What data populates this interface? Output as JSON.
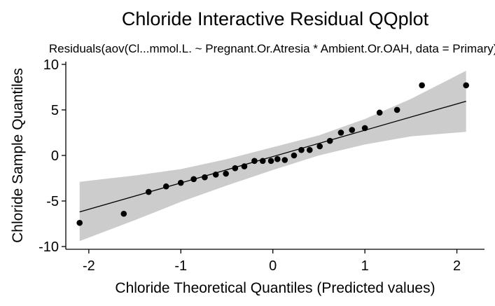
{
  "chart_data": {
    "type": "scatter",
    "title": "Chloride Interactive Residual QQplot",
    "subtitle": "Residuals(aov(Cl...mmol.L. ~ Pregnant.Or.Atresia * Ambient.Or.OAH, data = Primary))",
    "xlabel": "Chloride Theoretical Quantiles (Predicted values)",
    "ylabel": "Chloride Sample Quantiles",
    "xlim": [
      -2.25,
      2.3
    ],
    "ylim": [
      -10.3,
      10.3
    ],
    "x_ticks": [
      -2,
      -1,
      0,
      1,
      2
    ],
    "x_tick_labels": [
      "-2",
      "-1",
      "0",
      "1",
      "2"
    ],
    "y_ticks": [
      -10,
      -5,
      0,
      5,
      10
    ],
    "y_tick_labels": [
      "-10",
      "-5",
      "0",
      "5",
      "10"
    ],
    "grid": false,
    "colors": {
      "points": "#000000",
      "line": "#000000",
      "band": "#cccccc"
    },
    "reference_line": {
      "x": [
        -2.1,
        2.1
      ],
      "y": [
        -6.2,
        5.95
      ]
    },
    "confidence_band": {
      "x": [
        -2.1,
        -1.5,
        -1.0,
        -0.5,
        0.0,
        0.5,
        1.0,
        1.5,
        2.1
      ],
      "lower": [
        -9.4,
        -7.1,
        -5.1,
        -3.3,
        -1.6,
        0.0,
        1.2,
        2.1,
        2.6
      ],
      "upper": [
        -2.9,
        -2.2,
        -1.5,
        -0.4,
        0.9,
        2.2,
        4.0,
        6.2,
        9.3
      ]
    },
    "points": {
      "x": [
        -2.1,
        -1.62,
        -1.35,
        -1.16,
        -1.0,
        -0.86,
        -0.74,
        -0.62,
        -0.51,
        -0.41,
        -0.31,
        -0.2,
        -0.11,
        -0.02,
        0.05,
        0.13,
        0.23,
        0.31,
        0.4,
        0.51,
        0.62,
        0.74,
        0.86,
        1.0,
        1.16,
        1.35,
        1.62,
        2.1
      ],
      "y": [
        -7.4,
        -6.4,
        -4.0,
        -3.4,
        -3.0,
        -2.6,
        -2.4,
        -2.1,
        -2.0,
        -1.4,
        -1.2,
        -0.6,
        -0.6,
        -0.6,
        -0.4,
        -0.5,
        0.0,
        0.6,
        0.6,
        1.0,
        1.6,
        2.5,
        2.8,
        3.0,
        4.7,
        5.0,
        7.7,
        7.7
      ]
    }
  }
}
